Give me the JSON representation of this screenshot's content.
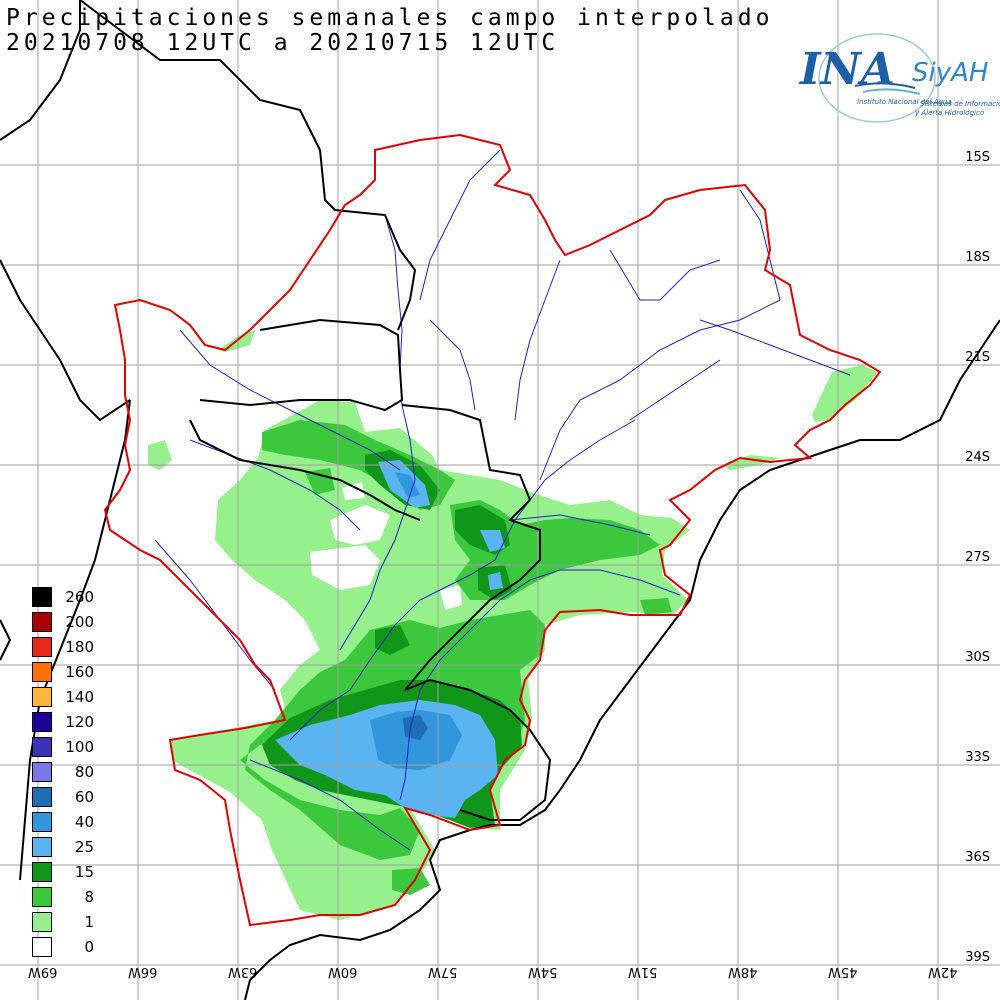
{
  "title": {
    "line1": "Precipitaciones semanales campo interpolado",
    "line2": "20210708 12UTC a 20210715 12UTC"
  },
  "logo": {
    "ina": "INA",
    "siyah": "SiyAH",
    "institute": "Instituto Nacional del Agua",
    "system_line1": "Sistemas de Información",
    "system_line2": "y Alerta Hidrológico"
  },
  "lat_labels": [
    "15S",
    "18S",
    "21S",
    "24S",
    "27S",
    "30S",
    "33S",
    "36S",
    "39S"
  ],
  "lon_labels": [
    "69W",
    "66W",
    "63W",
    "60W",
    "57W",
    "54W",
    "51W",
    "48W",
    "45W",
    "42W"
  ],
  "legend": [
    {
      "label": "260",
      "color": "#000000"
    },
    {
      "label": "200",
      "color": "#a80000"
    },
    {
      "label": "180",
      "color": "#e8281a"
    },
    {
      "label": "160",
      "color": "#ff7000"
    },
    {
      "label": "140",
      "color": "#ffb43c"
    },
    {
      "label": "120",
      "color": "#1e0096"
    },
    {
      "label": "100",
      "color": "#3c32b4"
    },
    {
      "label": "80",
      "color": "#7878e6"
    },
    {
      "label": "60",
      "color": "#1e6eb4"
    },
    {
      "label": "40",
      "color": "#3296dc"
    },
    {
      "label": "25",
      "color": "#5ab4f0"
    },
    {
      "label": "15",
      "color": "#109618"
    },
    {
      "label": "8",
      "color": "#3cc83c"
    },
    {
      "label": "1",
      "color": "#96f08c"
    },
    {
      "label": "0",
      "color": "#ffffff"
    }
  ],
  "colors": {
    "basin_outline": "#e00000",
    "rivers": "#2020c8",
    "borders": "#000000",
    "grid": "#a0a0a0"
  }
}
